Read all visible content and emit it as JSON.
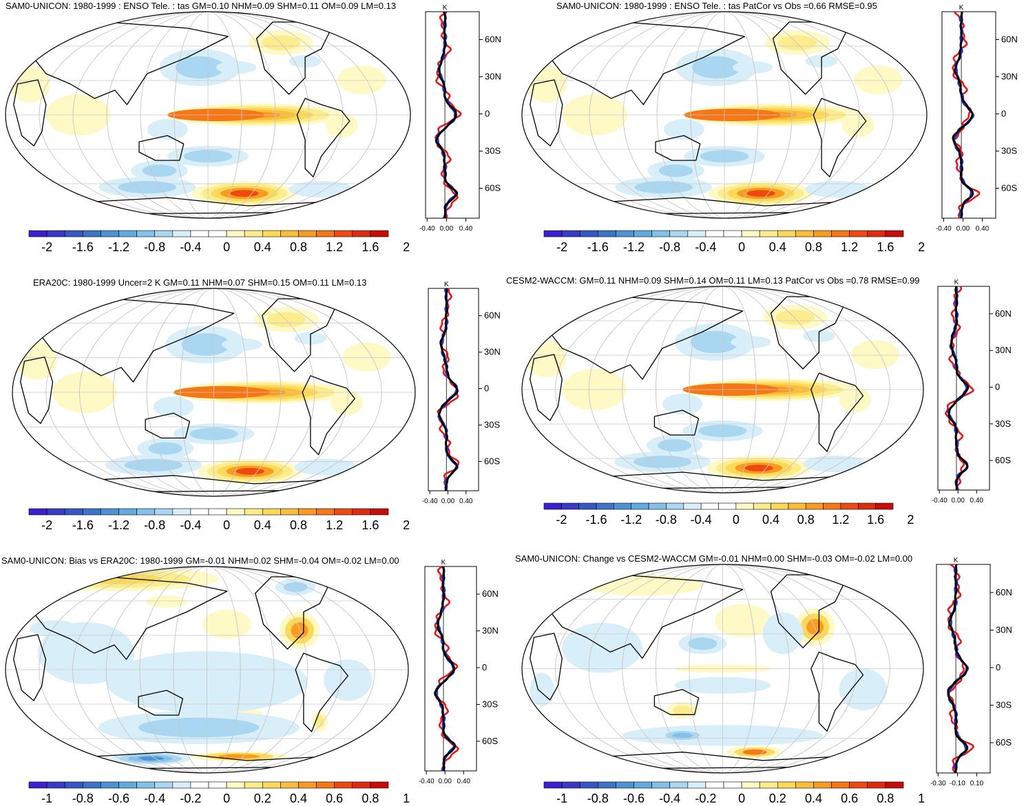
{
  "palette_positive": [
    "#fff9c6",
    "#fdec8c",
    "#fdd95a",
    "#fbbd3a",
    "#f99b23",
    "#f57717",
    "#ee4a10",
    "#de2a10",
    "#c80c0a"
  ],
  "palette_negative": [
    "#d8eef9",
    "#a9d7f1",
    "#82c2ea",
    "#61acde",
    "#4e92d3",
    "#3d73c8",
    "#3556c4",
    "#3a3ac7",
    "#3c1fd0"
  ],
  "line_colors": {
    "model": "#e4181b",
    "obs": "#1d2fe0",
    "mean": "#000000"
  },
  "panels": [
    {
      "id": "p1",
      "title": "SAM0-UNICON: 1980-1999 : ENSO Tele. : tas GM=0.10 NHM=0.09 SHM=0.11 OM=0.09 LM=0.13",
      "colorbar_labels": [
        "-2",
        "-1.6",
        "-1.2",
        "-0.8",
        "-0.4",
        "0",
        "0.4",
        "0.8",
        "1.2",
        "1.6",
        "2"
      ],
      "zonal_unit": "K",
      "zonal_ticks": [
        "-0.40",
        "0.00",
        "0.40"
      ],
      "lat_labels": [
        "60N",
        "30N",
        "0",
        "30S",
        "60S"
      ]
    },
    {
      "id": "p2",
      "title": "SAM0-UNICON: 1980-1999 : ENSO Tele. : tas PatCor vs Obs =0.66 RMSE=0.95",
      "colorbar_labels": [
        "-2",
        "-1.6",
        "-1.2",
        "-0.8",
        "-0.4",
        "0",
        "0.4",
        "0.8",
        "1.2",
        "1.6",
        "2"
      ],
      "zonal_unit": "K",
      "zonal_ticks": [
        "-0.40",
        "0.00",
        "0.40"
      ],
      "lat_labels": [
        "60N",
        "30N",
        "0",
        "30S",
        "60S"
      ]
    },
    {
      "id": "p3",
      "title": "ERA20C: 1980-1999 Uncer=2 K GM=0.11 NHM=0.07 SHM=0.15 OM=0.11 LM=0.13",
      "colorbar_labels": [
        "-2",
        "-1.6",
        "-1.2",
        "-0.8",
        "-0.4",
        "0",
        "0.4",
        "0.8",
        "1.2",
        "1.6",
        "2"
      ],
      "zonal_unit": "K",
      "zonal_ticks": [
        "-0.40",
        "0.00",
        "0.40"
      ],
      "lat_labels": [
        "60N",
        "30N",
        "0",
        "30S",
        "60S"
      ]
    },
    {
      "id": "p4",
      "title": "CESM2-WACCM: GM=0.11 NHM=0.09 SHM=0.14 OM=0.11 LM=0.13 PatCor vs Obs =0.78 RMSE=0.99",
      "colorbar_labels": [
        "-2",
        "-1.6",
        "-1.2",
        "-0.8",
        "-0.4",
        "0",
        "0.4",
        "0.8",
        "1.2",
        "1.6",
        "2"
      ],
      "zonal_unit": "K",
      "zonal_ticks": [
        "-0.40",
        "0.00",
        "0.40"
      ],
      "lat_labels": [
        "60N",
        "30N",
        "0",
        "30S",
        "60S"
      ]
    },
    {
      "id": "p5",
      "title": "SAM0-UNICON: Bias vs ERA20C: 1980-1999 GM=-0.01 NHM=0.02 SHM=-0.04 OM=-0.02 LM=0.00",
      "colorbar_labels": [
        "-1",
        "-0.8",
        "-0.6",
        "-0.4",
        "-0.2",
        "0",
        "0.2",
        "0.4",
        "0.6",
        "0.8",
        "1"
      ],
      "zonal_unit": "K",
      "zonal_ticks": [
        "-0.40",
        "0.00",
        "0.40"
      ],
      "lat_labels": [
        "60N",
        "30N",
        "0",
        "30S",
        "60S"
      ]
    },
    {
      "id": "p6",
      "title": "SAM0-UNICON: Change vs CESM2-WACCM GM=-0.01 NHM=0.00 SHM=-0.03 OM=-0.02 LM=0.00",
      "colorbar_labels": [
        "-1",
        "-0.8",
        "-0.6",
        "-0.4",
        "-0.2",
        "0",
        "0.2",
        "0.4",
        "0.6",
        "0.8",
        "1"
      ],
      "zonal_unit": "K",
      "zonal_ticks": [
        "-0.30",
        "-0.10",
        "0.10"
      ],
      "lat_labels": [
        "60N",
        "30N",
        "0",
        "30S",
        "60S"
      ]
    }
  ]
}
